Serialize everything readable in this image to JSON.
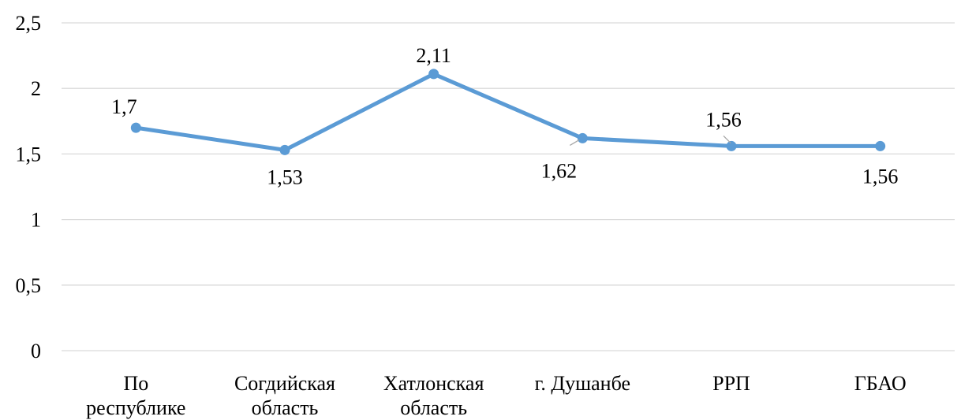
{
  "chart_data": {
    "type": "line",
    "categories": [
      [
        "По",
        "республике"
      ],
      [
        "Согдийская",
        "область"
      ],
      [
        "Хатлонская",
        "область"
      ],
      [
        "г. Душанбе"
      ],
      [
        "РРП"
      ],
      [
        "ГБАО"
      ]
    ],
    "series": [
      {
        "values": [
          1.7,
          1.53,
          2.11,
          1.62,
          1.56,
          1.56
        ],
        "color": "#5b9bd5"
      }
    ],
    "data_labels": [
      "1,7",
      "1,53",
      "2,11",
      "1,62",
      "1,56",
      "1,56"
    ],
    "yticks": [
      0,
      0.5,
      1,
      1.5,
      2,
      2.5
    ],
    "ytick_labels": [
      "0",
      "0,5",
      "1",
      "1,5",
      "2",
      "2,5"
    ],
    "ylim": [
      0,
      2.5
    ],
    "grid": true,
    "legend": "none",
    "title": "",
    "xlabel": "",
    "ylabel": ""
  }
}
